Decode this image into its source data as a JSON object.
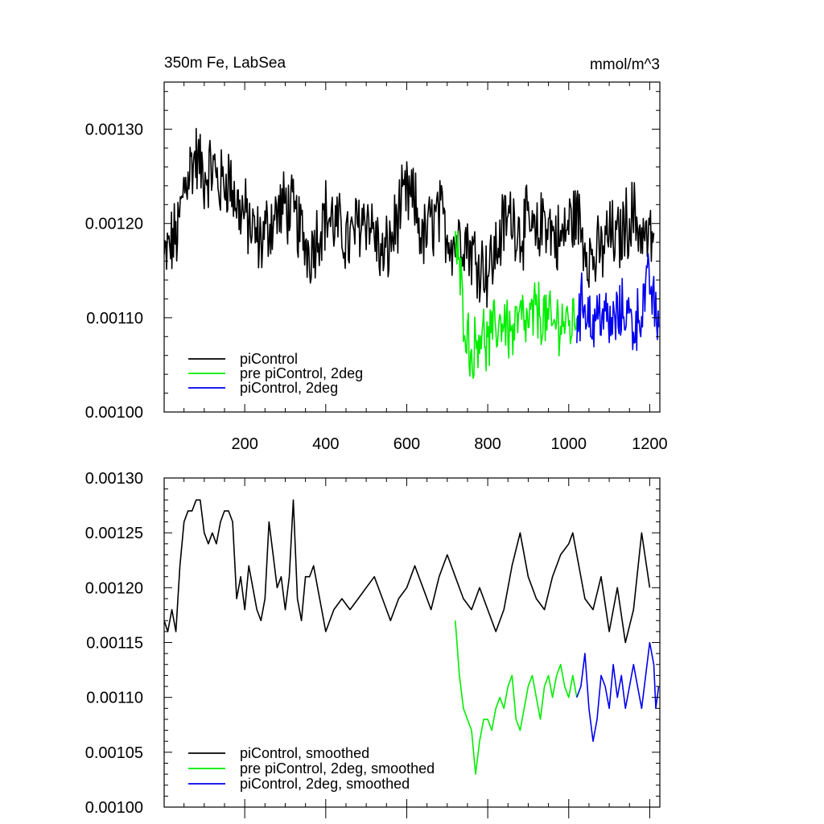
{
  "chart_data": [
    {
      "type": "line",
      "title_left": "350m Fe, LabSea",
      "title_right": "mmol/m^3",
      "xlim": [
        1,
        1225
      ],
      "ylim": [
        0.001,
        0.00135
      ],
      "xticks": [
        200,
        400,
        600,
        800,
        1000,
        1200
      ],
      "xtick_labels": [
        "200",
        "400",
        "600",
        "800",
        "1000",
        "1200"
      ],
      "yticks": [
        0.001,
        0.0011,
        0.0012,
        0.0013
      ],
      "ytick_labels": [
        "0.00100",
        "0.00110",
        "0.00120",
        "0.00130"
      ],
      "legend": {
        "position": "bottom-left",
        "entries": [
          "piControl",
          "pre piControl, 2deg",
          "piControl, 2deg"
        ]
      },
      "series": [
        {
          "name": "piControl",
          "color": "#000000",
          "x": [
            1,
            20,
            35,
            50,
            65,
            80,
            100,
            120,
            140,
            160,
            180,
            200,
            220,
            240,
            260,
            280,
            300,
            320,
            340,
            360,
            380,
            400,
            420,
            440,
            460,
            480,
            500,
            520,
            540,
            560,
            580,
            600,
            620,
            640,
            660,
            680,
            700,
            720,
            740,
            760,
            780,
            800,
            820,
            840,
            860,
            880,
            900,
            920,
            940,
            960,
            980,
            1000,
            1020,
            1040,
            1060,
            1080,
            1100,
            1120,
            1140,
            1160,
            1180,
            1200,
            1210
          ],
          "values": [
            0.00116,
            0.00118,
            0.00119,
            0.00124,
            0.00126,
            0.00127,
            0.00125,
            0.00126,
            0.00124,
            0.00125,
            0.00122,
            0.00121,
            0.00119,
            0.00118,
            0.0012,
            0.00121,
            0.00122,
            0.00121,
            0.00119,
            0.00117,
            0.00119,
            0.00121,
            0.0012,
            0.00119,
            0.00118,
            0.0012,
            0.00121,
            0.00119,
            0.00116,
            0.00118,
            0.00121,
            0.00123,
            0.00122,
            0.00118,
            0.0012,
            0.00121,
            0.00119,
            0.00118,
            0.00119,
            0.00117,
            0.00116,
            0.00115,
            0.00117,
            0.0012,
            0.00121,
            0.00119,
            0.0012,
            0.00118,
            0.00121,
            0.00119,
            0.00118,
            0.0012,
            0.00121,
            0.00118,
            0.00116,
            0.00117,
            0.00119,
            0.00118,
            0.0012,
            0.00121,
            0.00119,
            0.00118,
            0.00119
          ],
          "noise": 3.5e-05
        },
        {
          "name": "pre piControl, 2deg",
          "color": "#00ee00",
          "x": [
            720,
            730,
            740,
            750,
            760,
            770,
            780,
            790,
            800,
            820,
            840,
            860,
            880,
            900,
            920,
            940,
            960,
            980,
            1000,
            1020
          ],
          "values": [
            0.00118,
            0.00115,
            0.00111,
            0.00108,
            0.00106,
            0.00107,
            0.00109,
            0.00108,
            0.00107,
            0.00109,
            0.0011,
            0.00108,
            0.0011,
            0.00109,
            0.00111,
            0.0011,
            0.00109,
            0.0011,
            0.00109,
            0.0011
          ],
          "noise": 3e-05
        },
        {
          "name": "piControl, 2deg",
          "color": "#0000ee",
          "x": [
            1020,
            1040,
            1060,
            1080,
            1100,
            1120,
            1140,
            1160,
            1180,
            1200,
            1215,
            1222
          ],
          "values": [
            0.0011,
            0.00112,
            0.00109,
            0.00111,
            0.00109,
            0.0011,
            0.00111,
            0.00109,
            0.00111,
            0.00114,
            0.0011,
            0.00109
          ],
          "noise": 3e-05
        }
      ]
    },
    {
      "type": "line",
      "xlim": [
        1,
        1225
      ],
      "ylim": [
        0.001,
        0.0013
      ],
      "xticks": [
        200,
        400,
        600,
        800,
        1000,
        1200
      ],
      "yticks": [
        0.001,
        0.00105,
        0.0011,
        0.00115,
        0.0012,
        0.00125,
        0.0013
      ],
      "ytick_labels": [
        "0.00100",
        "0.00105",
        "0.00110",
        "0.00115",
        "0.00120",
        "0.00125",
        "0.00130"
      ],
      "legend": {
        "position": "bottom-left",
        "entries": [
          "piControl, smoothed",
          "pre piControl, 2deg, smoothed",
          "piControl, 2deg, smoothed"
        ]
      },
      "series": [
        {
          "name": "piControl, smoothed",
          "color": "#000000",
          "x": [
            1,
            10,
            20,
            30,
            40,
            50,
            60,
            70,
            80,
            90,
            100,
            110,
            120,
            130,
            140,
            150,
            160,
            170,
            180,
            190,
            200,
            210,
            220,
            230,
            240,
            250,
            260,
            270,
            280,
            290,
            300,
            310,
            320,
            330,
            340,
            350,
            360,
            370,
            380,
            390,
            400,
            420,
            440,
            460,
            480,
            500,
            520,
            540,
            560,
            580,
            600,
            620,
            640,
            660,
            680,
            700,
            720,
            740,
            760,
            780,
            800,
            820,
            840,
            860,
            880,
            900,
            920,
            940,
            960,
            980,
            1000,
            1010,
            1020,
            1040,
            1060,
            1080,
            1100,
            1120,
            1140,
            1160,
            1180,
            1200
          ],
          "values": [
            0.00117,
            0.00116,
            0.00118,
            0.00116,
            0.00122,
            0.00126,
            0.00127,
            0.00127,
            0.00128,
            0.00128,
            0.00125,
            0.00124,
            0.00125,
            0.00124,
            0.00126,
            0.00127,
            0.00127,
            0.00126,
            0.00119,
            0.00121,
            0.00118,
            0.00122,
            0.0012,
            0.00118,
            0.00117,
            0.00119,
            0.00126,
            0.00123,
            0.0012,
            0.00121,
            0.00118,
            0.00121,
            0.00128,
            0.00119,
            0.00117,
            0.00121,
            0.00121,
            0.00122,
            0.0012,
            0.00118,
            0.00116,
            0.00118,
            0.00119,
            0.00118,
            0.00119,
            0.0012,
            0.00121,
            0.00119,
            0.00117,
            0.00119,
            0.0012,
            0.00122,
            0.0012,
            0.00118,
            0.00121,
            0.00123,
            0.00121,
            0.00119,
            0.00118,
            0.0012,
            0.00118,
            0.00116,
            0.00118,
            0.00122,
            0.00125,
            0.00121,
            0.00119,
            0.00118,
            0.00121,
            0.00123,
            0.00124,
            0.00125,
            0.00123,
            0.00119,
            0.00118,
            0.00121,
            0.00116,
            0.0012,
            0.00115,
            0.00118,
            0.00125,
            0.0012
          ]
        },
        {
          "name": "pre piControl, 2deg, smoothed",
          "color": "#00ee00",
          "x": [
            720,
            730,
            740,
            750,
            760,
            770,
            780,
            790,
            800,
            810,
            820,
            830,
            840,
            850,
            860,
            870,
            880,
            890,
            900,
            910,
            920,
            930,
            940,
            950,
            960,
            970,
            980,
            990,
            1000,
            1010,
            1020
          ],
          "values": [
            0.00117,
            0.00112,
            0.00109,
            0.00108,
            0.00107,
            0.00103,
            0.00106,
            0.00108,
            0.00108,
            0.00107,
            0.00109,
            0.0011,
            0.00109,
            0.00111,
            0.00112,
            0.00108,
            0.00107,
            0.00109,
            0.00111,
            0.00112,
            0.0011,
            0.00108,
            0.00111,
            0.00112,
            0.0011,
            0.00112,
            0.00113,
            0.00111,
            0.0011,
            0.00112,
            0.0011
          ]
        },
        {
          "name": "piControl, 2deg, smoothed",
          "color": "#0000ee",
          "x": [
            1020,
            1030,
            1040,
            1050,
            1060,
            1070,
            1080,
            1090,
            1100,
            1110,
            1120,
            1130,
            1140,
            1150,
            1160,
            1170,
            1180,
            1190,
            1200,
            1210,
            1215,
            1222
          ],
          "values": [
            0.0011,
            0.00111,
            0.00114,
            0.00109,
            0.00106,
            0.00108,
            0.00112,
            0.00111,
            0.00109,
            0.00113,
            0.0011,
            0.00112,
            0.00109,
            0.00111,
            0.00113,
            0.00111,
            0.00109,
            0.00112,
            0.00115,
            0.00113,
            0.00109,
            0.00111
          ]
        }
      ]
    }
  ]
}
